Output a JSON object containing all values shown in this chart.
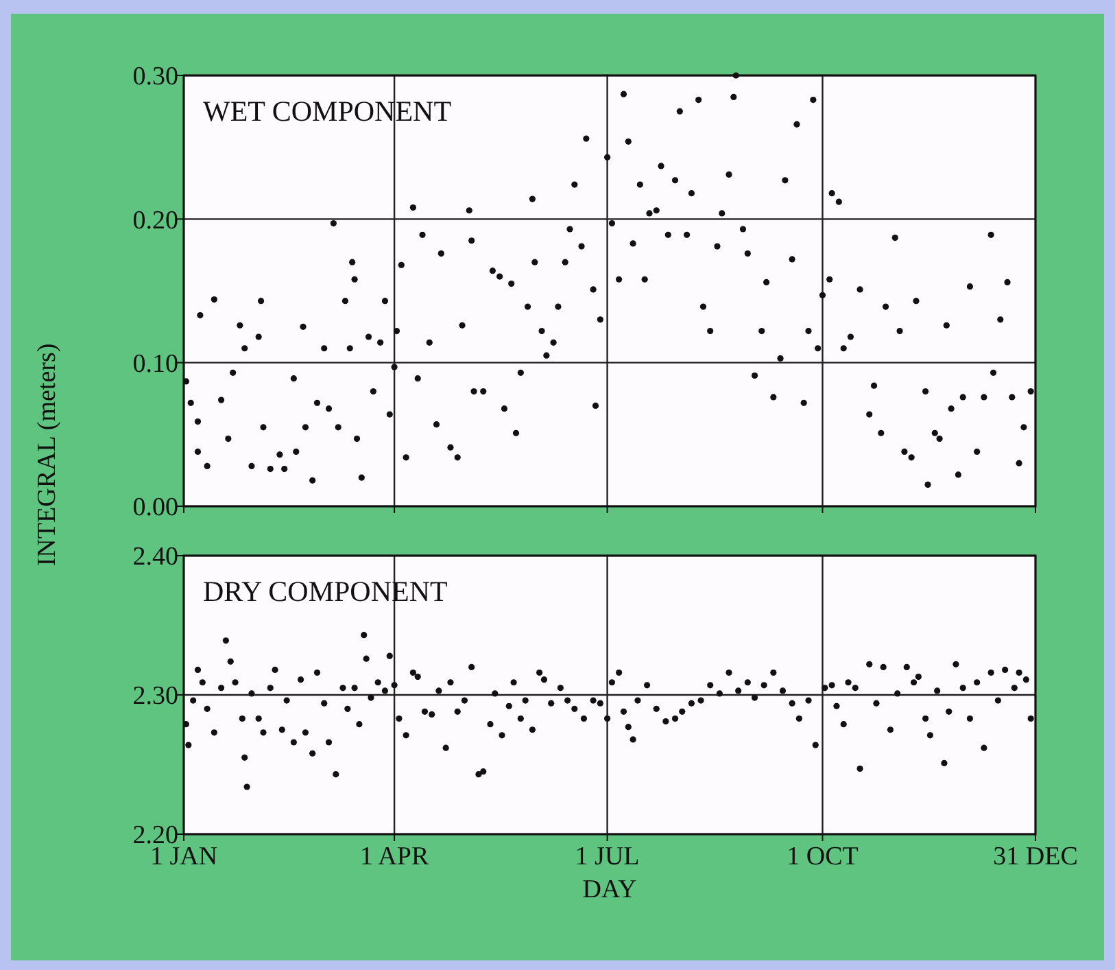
{
  "chart_data": [
    {
      "type": "scatter",
      "title": "WET COMPONENT",
      "ylabel": "INTEGRAL (meters)",
      "xlim": [
        "--01-01",
        "--12-31"
      ],
      "xticks": [
        {
          "value": "--01-01",
          "label": null
        },
        {
          "value": "--04-01",
          "label": null
        },
        {
          "value": "--07-01",
          "label": null
        },
        {
          "value": "--10-01",
          "label": null
        },
        {
          "value": "--12-31",
          "label": null
        }
      ],
      "ylim": [
        0,
        0.3
      ],
      "yticks": [
        {
          "value": 0,
          "label": "0.00"
        },
        {
          "value": 0.1,
          "label": "0.10"
        },
        {
          "value": 0.2,
          "label": "0.20"
        },
        {
          "value": 0.3,
          "label": "0.30"
        }
      ],
      "tick_labels": "y",
      "grid": true,
      "marker": "circle",
      "x": [
        "--01-02",
        "--01-04",
        "--01-07",
        "--01-08",
        "--01-07",
        "--01-11",
        "--01-14",
        "--01-17",
        "--01-20",
        "--01-22",
        "--01-25",
        "--01-27",
        "--01-30",
        "--02-02",
        "--02-03",
        "--02-04",
        "--02-07",
        "--02-11",
        "--02-13",
        "--02-17",
        "--02-18",
        "--02-21",
        "--02-22",
        "--02-25",
        "--02-27",
        "--03-02",
        "--03-04",
        "--03-06",
        "--03-08",
        "--03-11",
        "--03-13",
        "--03-14",
        "--03-15",
        "--03-16",
        "--03-18",
        "--03-21",
        "--03-23",
        "--03-26",
        "--03-28",
        "--03-30",
        "--04-01",
        "--04-02",
        "--04-04",
        "--04-06",
        "--04-09",
        "--04-11",
        "--04-13",
        "--04-16",
        "--04-19",
        "--04-21",
        "--04-25",
        "--04-28",
        "--04-30",
        "--05-03",
        "--05-04",
        "--05-05",
        "--05-09",
        "--05-13",
        "--05-16",
        "--05-18",
        "--05-21",
        "--05-23",
        "--05-25",
        "--05-28",
        "--05-30",
        "--05-31",
        "--06-03",
        "--06-05",
        "--06-08",
        "--06-10",
        "--06-13",
        "--06-15",
        "--06-17",
        "--06-20",
        "--06-22",
        "--06-25",
        "--06-26",
        "--06-28",
        "--07-01",
        "--07-03",
        "--07-06",
        "--07-08",
        "--07-10",
        "--07-12",
        "--07-15",
        "--07-17",
        "--07-19",
        "--07-22",
        "--07-24",
        "--07-27",
        "--07-30",
        "--08-01",
        "--08-04",
        "--08-06",
        "--08-09",
        "--08-11",
        "--08-14",
        "--08-17",
        "--08-19",
        "--08-22",
        "--08-24",
        "--08-25",
        "--08-28",
        "--08-30",
        "--09-02",
        "--09-05",
        "--09-07",
        "--09-10",
        "--09-13",
        "--09-15",
        "--09-18",
        "--09-20",
        "--09-23",
        "--09-25",
        "--09-27",
        "--09-29",
        "--10-01",
        "--10-04",
        "--10-05",
        "--10-08",
        "--10-10",
        "--10-13",
        "--10-17",
        "--10-21",
        "--10-23",
        "--10-26",
        "--10-28",
        "--11-01",
        "--11-03",
        "--11-05",
        "--11-08",
        "--11-10",
        "--11-14",
        "--11-15",
        "--11-18",
        "--11-20",
        "--11-23",
        "--11-25",
        "--11-28",
        "--11-30",
        "--12-03",
        "--12-06",
        "--12-09",
        "--12-12",
        "--12-13",
        "--12-16",
        "--12-19",
        "--12-21",
        "--12-24",
        "--12-26",
        "--12-29"
      ],
      "series": [
        {
          "color": "#111111",
          "values": [
            0.087,
            0.072,
            0.059,
            0.133,
            0.038,
            0.028,
            0.144,
            0.074,
            0.047,
            0.093,
            0.126,
            0.11,
            0.028,
            0.118,
            0.143,
            0.055,
            0.026,
            0.036,
            0.026,
            0.089,
            0.038,
            0.125,
            0.055,
            0.018,
            0.072,
            0.11,
            0.068,
            0.197,
            0.055,
            0.143,
            0.11,
            0.17,
            0.158,
            0.047,
            0.02,
            0.118,
            0.08,
            0.114,
            0.143,
            0.064,
            0.097,
            0.122,
            0.168,
            0.034,
            0.208,
            0.089,
            0.189,
            0.114,
            0.057,
            0.176,
            0.041,
            0.034,
            0.126,
            0.206,
            0.185,
            0.08,
            0.08,
            0.164,
            0.16,
            0.068,
            0.155,
            0.051,
            0.093,
            0.139,
            0.214,
            0.17,
            0.122,
            0.105,
            0.114,
            0.139,
            0.17,
            0.193,
            0.224,
            0.181,
            0.256,
            0.151,
            0.07,
            0.13,
            0.243,
            0.197,
            0.158,
            0.287,
            0.254,
            0.183,
            0.224,
            0.158,
            0.204,
            0.206,
            0.237,
            0.189,
            0.227,
            0.275,
            0.189,
            0.218,
            0.283,
            0.139,
            0.122,
            0.181,
            0.204,
            0.231,
            0.285,
            0.3,
            0.193,
            0.176,
            0.091,
            0.122,
            0.156,
            0.076,
            0.103,
            0.227,
            0.172,
            0.266,
            0.072,
            0.122,
            0.283,
            0.11,
            0.147,
            0.158,
            0.218,
            0.212,
            0.11,
            0.118,
            0.151,
            0.064,
            0.084,
            0.051,
            0.139,
            0.187,
            0.122,
            0.038,
            0.034,
            0.143,
            0.08,
            0.015,
            0.051,
            0.047,
            0.126,
            0.068,
            0.022,
            0.076,
            0.153,
            0.038,
            0.076,
            0.189,
            0.093,
            0.13,
            0.156,
            0.076,
            0.03,
            0.055,
            0.08
          ]
        }
      ]
    },
    {
      "type": "scatter",
      "title": "DRY COMPONENT",
      "xlabel": "DAY",
      "xlim": [
        "--01-01",
        "--12-31"
      ],
      "xticks": [
        {
          "value": "--01-01",
          "label": "1 JAN"
        },
        {
          "value": "--04-01",
          "label": "1 APR"
        },
        {
          "value": "--07-01",
          "label": "1 JUL"
        },
        {
          "value": "--10-01",
          "label": "1 OCT"
        },
        {
          "value": "--12-31",
          "label": "31 DEC"
        }
      ],
      "ylim": [
        2.2,
        2.4
      ],
      "yticks": [
        {
          "value": 2.2,
          "label": "2.20"
        },
        {
          "value": 2.3,
          "label": "2.30"
        },
        {
          "value": 2.4,
          "label": "2.40"
        }
      ],
      "grid": true,
      "marker": "circle",
      "x": [
        "--01-02",
        "--01-03",
        "--01-05",
        "--01-07",
        "--01-09",
        "--01-11",
        "--01-14",
        "--01-17",
        "--01-19",
        "--01-21",
        "--01-23",
        "--01-26",
        "--01-27",
        "--01-28",
        "--01-30",
        "--02-02",
        "--02-04",
        "--02-07",
        "--02-09",
        "--02-12",
        "--02-14",
        "--02-17",
        "--02-20",
        "--02-22",
        "--02-25",
        "--02-27",
        "--03-02",
        "--03-04",
        "--03-07",
        "--03-10",
        "--03-12",
        "--03-15",
        "--03-17",
        "--03-19",
        "--03-20",
        "--03-22",
        "--03-25",
        "--03-28",
        "--03-30",
        "--04-01",
        "--04-03",
        "--04-06",
        "--04-09",
        "--04-11",
        "--04-14",
        "--04-17",
        "--04-20",
        "--04-23",
        "--04-25",
        "--04-28",
        "--05-01",
        "--05-04",
        "--05-07",
        "--05-09",
        "--05-12",
        "--05-14",
        "--05-17",
        "--05-20",
        "--05-22",
        "--05-25",
        "--05-27",
        "--05-30",
        "--06-02",
        "--06-04",
        "--06-07",
        "--06-11",
        "--06-14",
        "--06-17",
        "--06-21",
        "--06-25",
        "--06-28",
        "--07-01",
        "--07-03",
        "--07-06",
        "--07-08",
        "--07-10",
        "--07-12",
        "--07-14",
        "--07-18",
        "--07-22",
        "--07-26",
        "--07-30",
        "--08-02",
        "--08-06",
        "--08-10",
        "--08-14",
        "--08-18",
        "--08-22",
        "--08-26",
        "--08-30",
        "--09-02",
        "--09-06",
        "--09-10",
        "--09-14",
        "--09-18",
        "--09-21",
        "--09-25",
        "--09-28",
        "--10-02",
        "--10-05",
        "--10-07",
        "--10-10",
        "--10-12",
        "--10-15",
        "--10-17",
        "--10-21",
        "--10-24",
        "--10-27",
        "--10-30",
        "--11-02",
        "--11-06",
        "--11-09",
        "--11-11",
        "--11-14",
        "--11-16",
        "--11-19",
        "--11-22",
        "--11-24",
        "--11-27",
        "--11-30",
        "--12-03",
        "--12-06",
        "--12-09",
        "--12-12",
        "--12-15",
        "--12-18",
        "--12-22",
        "--12-24",
        "--12-27",
        "--12-29"
      ],
      "series": [
        {
          "color": "#111111",
          "values": [
            2.279,
            2.264,
            2.296,
            2.318,
            2.309,
            2.29,
            2.273,
            2.305,
            2.339,
            2.324,
            2.309,
            2.283,
            2.255,
            2.234,
            2.301,
            2.283,
            2.273,
            2.305,
            2.318,
            2.275,
            2.296,
            2.266,
            2.311,
            2.273,
            2.258,
            2.316,
            2.294,
            2.266,
            2.243,
            2.305,
            2.29,
            2.305,
            2.279,
            2.343,
            2.326,
            2.298,
            2.309,
            2.303,
            2.328,
            2.307,
            2.283,
            2.271,
            2.316,
            2.313,
            2.288,
            2.286,
            2.303,
            2.262,
            2.309,
            2.288,
            2.296,
            2.32,
            2.243,
            2.245,
            2.279,
            2.301,
            2.271,
            2.292,
            2.309,
            2.283,
            2.296,
            2.275,
            2.316,
            2.311,
            2.294,
            2.305,
            2.296,
            2.29,
            2.283,
            2.296,
            2.294,
            2.283,
            2.309,
            2.316,
            2.288,
            2.277,
            2.268,
            2.296,
            2.307,
            2.29,
            2.281,
            2.283,
            2.288,
            2.294,
            2.296,
            2.307,
            2.301,
            2.316,
            2.303,
            2.309,
            2.298,
            2.307,
            2.316,
            2.303,
            2.294,
            2.283,
            2.296,
            2.264,
            2.305,
            2.307,
            2.292,
            2.279,
            2.309,
            2.305,
            2.247,
            2.322,
            2.294,
            2.32,
            2.275,
            2.301,
            2.32,
            2.309,
            2.313,
            2.283,
            2.271,
            2.303,
            2.251,
            2.288,
            2.322,
            2.305,
            2.283,
            2.309,
            2.262,
            2.316,
            2.296,
            2.318,
            2.305,
            2.316,
            2.311,
            2.283
          ]
        }
      ]
    }
  ]
}
